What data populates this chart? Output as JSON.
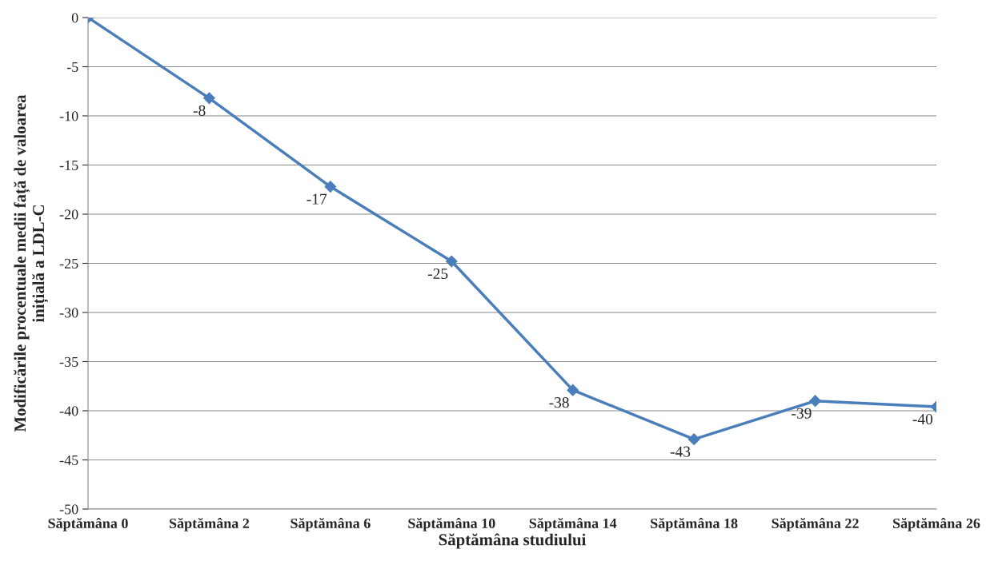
{
  "chart_data": {
    "type": "line",
    "xlabel": "Săptămâna studiului",
    "ylabel": "Modificările procentuale medii față de valoarea\ninițială a LDL-C",
    "categories": [
      "Săptămâna 0",
      "Săptămâna 2",
      "Săptămâna 6",
      "Săptămâna 10",
      "Săptămâna 14",
      "Săptămâna 18",
      "Săptămâna 22",
      "Săptămâna 26"
    ],
    "series": [
      {
        "color": "#4a7ebb",
        "values": [
          0,
          -8.2,
          -17.2,
          -24.8,
          -37.9,
          -42.9,
          -39.0,
          -39.6
        ],
        "value_labels": [
          null,
          "-8",
          "-17",
          "-25",
          "-38",
          "-43",
          "-39",
          "-40"
        ]
      }
    ],
    "ylim": [
      -50,
      0
    ],
    "yticks": [
      -50,
      -45,
      -40,
      -35,
      -30,
      -25,
      -20,
      -15,
      -10,
      -5,
      0
    ],
    "grid": "y",
    "marker": "diamond",
    "line_style": "solid"
  }
}
